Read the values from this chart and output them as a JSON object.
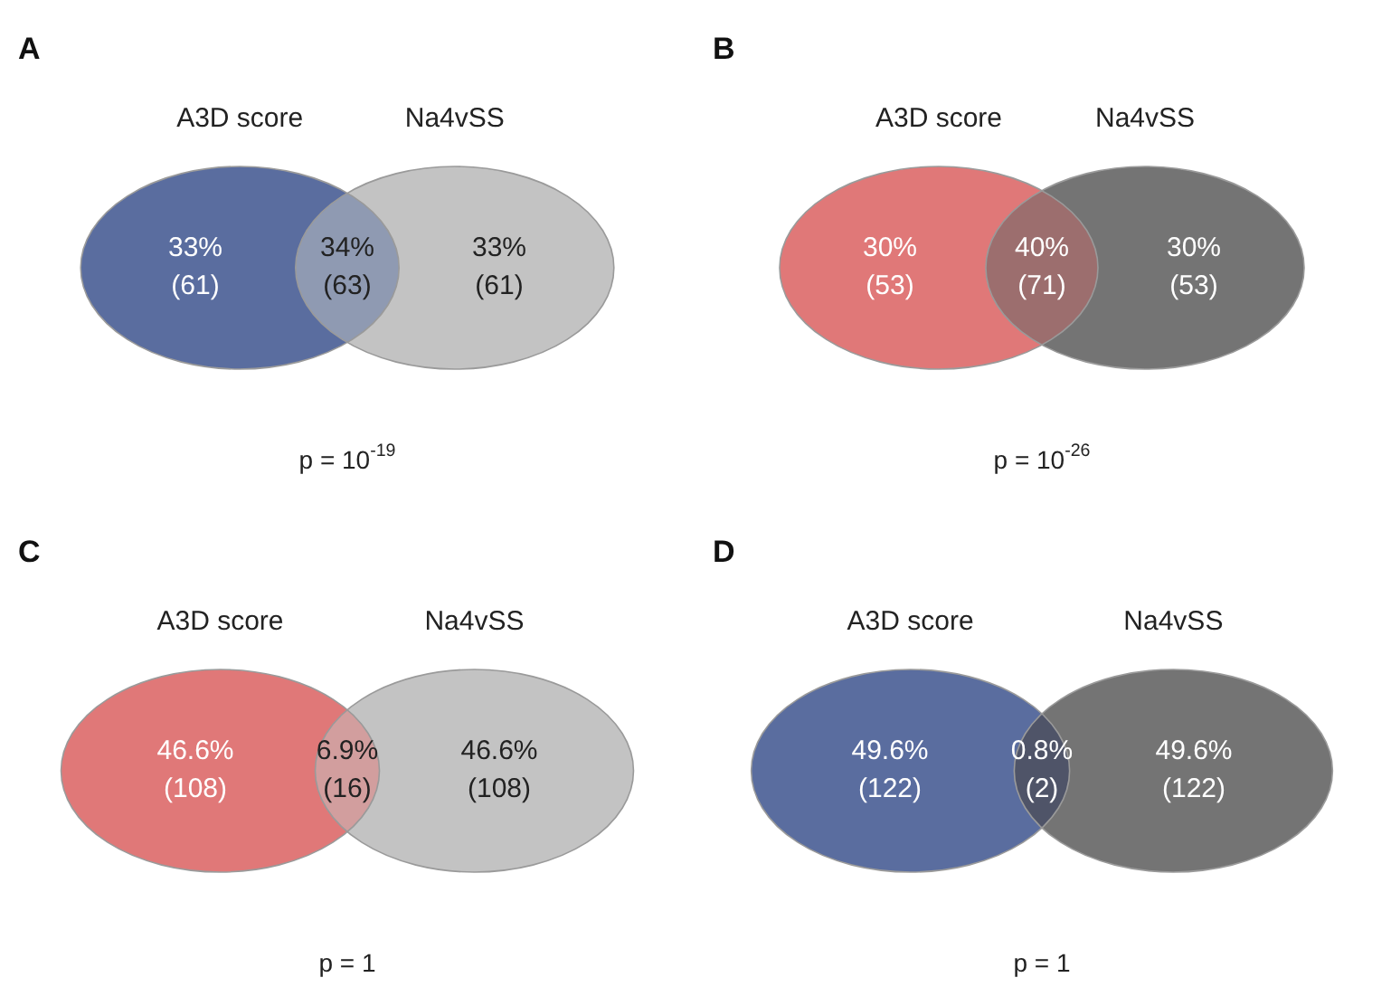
{
  "chart_data": [
    {
      "type": "other",
      "title": "A",
      "categories": [
        null,
        null,
        null
      ],
      "values": [
        33,
        34,
        33
      ],
      "value_labels": [
        "33%\n(61)",
        "34%\n(63)",
        "33%\n(61)"
      ],
      "colors": [
        "#5a6d9f",
        "#8f9ab2",
        "#c3c3c3"
      ],
      "annotations": [
        "A3D score",
        "Na4vSS",
        "p = 10$^{-19}$"
      ]
    },
    {
      "type": "other",
      "title": "B",
      "categories": [
        null,
        null,
        null
      ],
      "values": [
        30,
        40,
        30
      ],
      "value_labels": [
        "30%\n(53)",
        "40%\n(71)",
        "30%\n(53)"
      ],
      "colors": [
        "#e07878",
        "#9c6e6e",
        "#747474"
      ],
      "annotations": [
        "A3D score",
        "Na4vSS",
        "p = 10$^{-26}$"
      ]
    },
    {
      "type": "other",
      "title": "C",
      "categories": [
        null,
        null,
        null
      ],
      "values": [
        46.6,
        6.9,
        46.6
      ],
      "value_labels": [
        "46.6%\n(108)",
        "6.9%\n(16)",
        "46.6%\n(108)"
      ],
      "colors": [
        "#e07878",
        "#d29e9e",
        "#c3c3c3"
      ],
      "annotations": [
        "A3D score",
        "Na4vSS",
        "p = 1"
      ]
    },
    {
      "type": "other",
      "title": "D",
      "categories": [
        null,
        null,
        null
      ],
      "values": [
        49.6,
        0.8,
        49.6
      ],
      "value_labels": [
        "49.6%\n(122)",
        "0.8%\n(2)",
        "49.6%\n(122)"
      ],
      "colors": [
        "#5a6d9f",
        "#4f5468",
        "#747474"
      ],
      "annotations": [
        "A3D score",
        "Na4vSS",
        "p = 1"
      ]
    }
  ]
}
